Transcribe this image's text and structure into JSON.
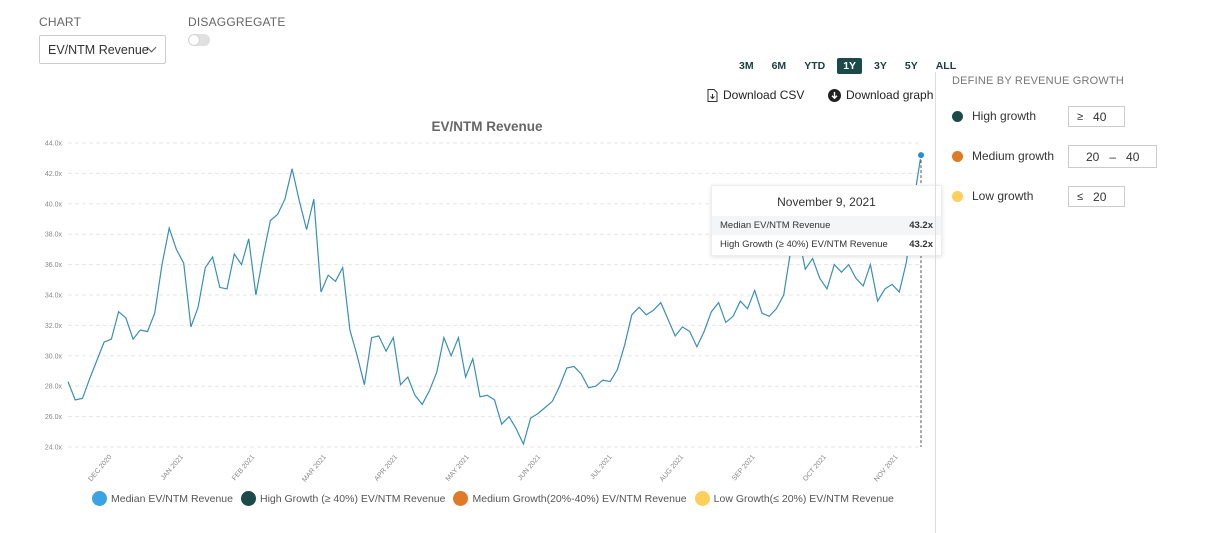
{
  "controls": {
    "chart_label": "CHART",
    "chart_select_value": "EV/NTM Revenue",
    "disaggregate_label": "DISAGGREGATE",
    "disaggregate_on": false
  },
  "ranges": [
    "3M",
    "6M",
    "YTD",
    "1Y",
    "3Y",
    "5Y",
    "ALL"
  ],
  "active_range": "1Y",
  "downloads": {
    "csv": "Download CSV",
    "graph": "Download graph"
  },
  "define": {
    "title": "DEFINE BY REVENUE GROWTH",
    "high": {
      "label": "High growth",
      "op": "≥",
      "value": "40",
      "color": "#1c4a4a"
    },
    "medium": {
      "label": "Medium growth",
      "low": "20",
      "dash": "–",
      "high": "40",
      "color": "#e07a26"
    },
    "low": {
      "label": "Low growth",
      "op": "≤",
      "value": "20",
      "color": "#fdd05b"
    }
  },
  "tooltip": {
    "date": "November 9, 2021",
    "rows": [
      {
        "label": "Median EV/NTM Revenue",
        "value": "43.2x"
      },
      {
        "label": "High Growth (≥ 40%) EV/NTM Revenue",
        "value": "43.2x"
      }
    ]
  },
  "legend": [
    {
      "label": "Median EV/NTM Revenue",
      "color": "#3aa3e3"
    },
    {
      "label": "High Growth (≥ 40%) EV/NTM Revenue",
      "color": "#1c4a4a"
    },
    {
      "label": "Medium Growth(20%-40%) EV/NTM Revenue",
      "color": "#e07a26"
    },
    {
      "label": "Low Growth(≤ 20%) EV/NTM Revenue",
      "color": "#fdd05b"
    }
  ],
  "chart_data": {
    "type": "line",
    "title": "EV/NTM Revenue",
    "ylim": [
      24,
      44
    ],
    "yticks": [
      "24.0x",
      "26.0x",
      "28.0x",
      "30.0x",
      "32.0x",
      "34.0x",
      "36.0x",
      "38.0x",
      "40.0x",
      "42.0x",
      "44.0x"
    ],
    "xticks": [
      "DEC 2020",
      "JAN 2021",
      "FEB 2021",
      "MAR 2021",
      "APR 2021",
      "MAY 2021",
      "JUN 2021",
      "JUL 2021",
      "AUG 2021",
      "SEP 2021",
      "OCT 2021",
      "NOV 2021"
    ],
    "grid": true,
    "line_color": "#3a8fb7",
    "series": [
      {
        "name": "Median EV/NTM Revenue",
        "values": [
          28.3,
          27.1,
          27.2,
          28.5,
          29.7,
          30.9,
          31.1,
          32.9,
          32.5,
          31.1,
          31.7,
          31.6,
          32.8,
          36.0,
          38.4,
          37.0,
          36.1,
          31.9,
          33.2,
          35.8,
          36.5,
          34.5,
          34.4,
          36.7,
          36.0,
          37.7,
          34.0,
          36.6,
          38.9,
          39.3,
          40.3,
          42.3,
          40.2,
          38.3,
          40.3,
          34.2,
          35.3,
          34.9,
          35.8,
          31.7,
          30.0,
          28.1,
          31.2,
          31.3,
          30.3,
          31.2,
          28.1,
          28.6,
          27.4,
          26.8,
          27.7,
          28.9,
          31.2,
          30.0,
          31.2,
          28.6,
          29.8,
          27.3,
          27.4,
          27.1,
          25.5,
          26.0,
          25.2,
          24.2,
          25.9,
          26.2,
          26.6,
          27.0,
          28.0,
          29.2,
          29.3,
          28.8,
          27.9,
          28.0,
          28.4,
          28.3,
          29.1,
          30.7,
          32.7,
          33.2,
          32.7,
          33.0,
          33.5,
          32.4,
          31.3,
          31.9,
          31.6,
          30.6,
          31.6,
          32.9,
          33.5,
          32.2,
          32.6,
          33.6,
          33.1,
          34.3,
          32.8,
          32.6,
          33.1,
          34.0,
          37.0,
          38.0,
          35.7,
          36.4,
          35.1,
          34.4,
          36.0,
          35.5,
          36.0,
          35.1,
          34.6,
          36.0,
          33.6,
          34.4,
          34.7,
          34.2,
          36.2,
          40.2,
          43.2
        ]
      }
    ]
  }
}
